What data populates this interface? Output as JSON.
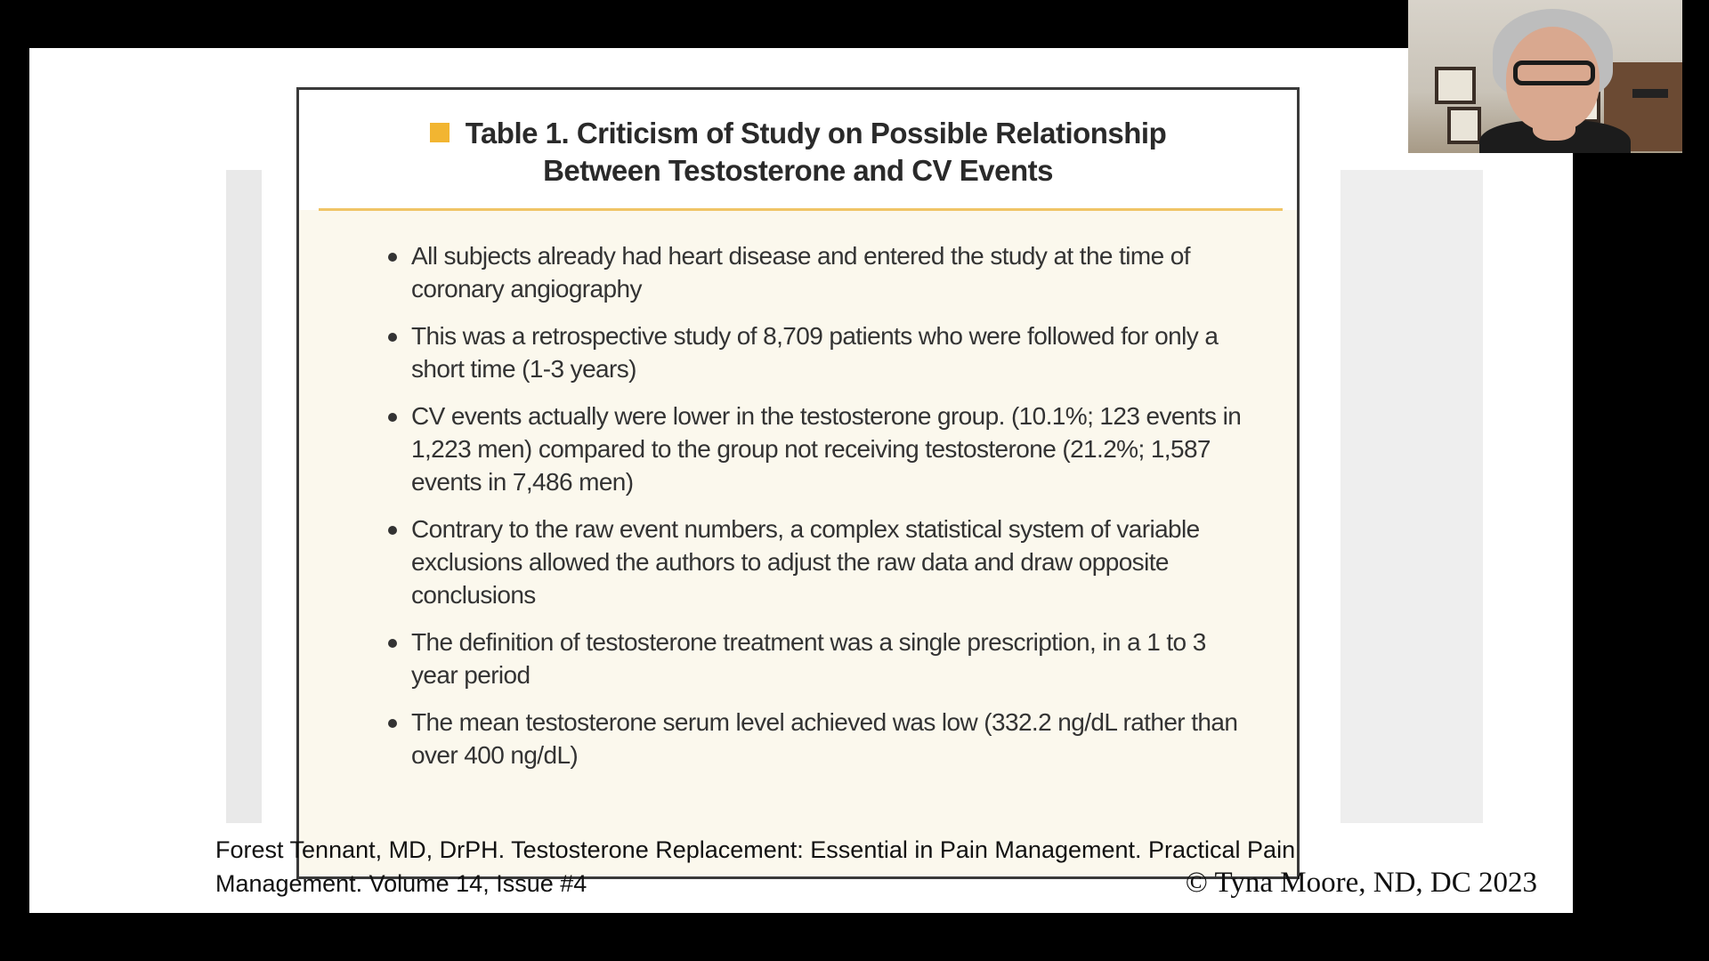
{
  "slide": {
    "table": {
      "title_line1": "Table 1. Criticism of Study on Possible Relationship",
      "title_line2": "Between Testosterone and CV Events",
      "bullets": [
        "All subjects already had heart disease and entered the study at the time of coronary angiography",
        "This was a retrospective study of 8,709 patients who were followed for only a short time (1-3 years)",
        "CV events actually were lower in the testosterone group. (10.1%; 123 events in 1,223 men) compared to the group not receiving testosterone (21.2%; 1,587 events in 7,486 men)",
        "Contrary to the raw event numbers, a complex statistical system of variable exclusions allowed the authors to adjust the raw data and draw opposite conclusions",
        "The definition of testosterone treatment was a single prescription, in a 1 to 3 year period",
        "The mean testosterone serum level achieved was low (332.2 ng/dL rather than over 400 ng/dL)"
      ]
    },
    "citation_line1": "Forest Tennant, MD, DrPH. Testosterone Replacement: Essential in Pain Management. Practical Pain",
    "citation_line2": "Management. Volume 14, Issue #4",
    "copyright": "© Tyna Moore, ND, DC 2023"
  },
  "colors": {
    "title_square": "#f2b531",
    "title_rule": "#f0c566",
    "table_background": "#fbf8ed"
  },
  "icons": {
    "title_marker": "square-bullet-icon",
    "webcam": "presenter-video-thumbnail"
  }
}
